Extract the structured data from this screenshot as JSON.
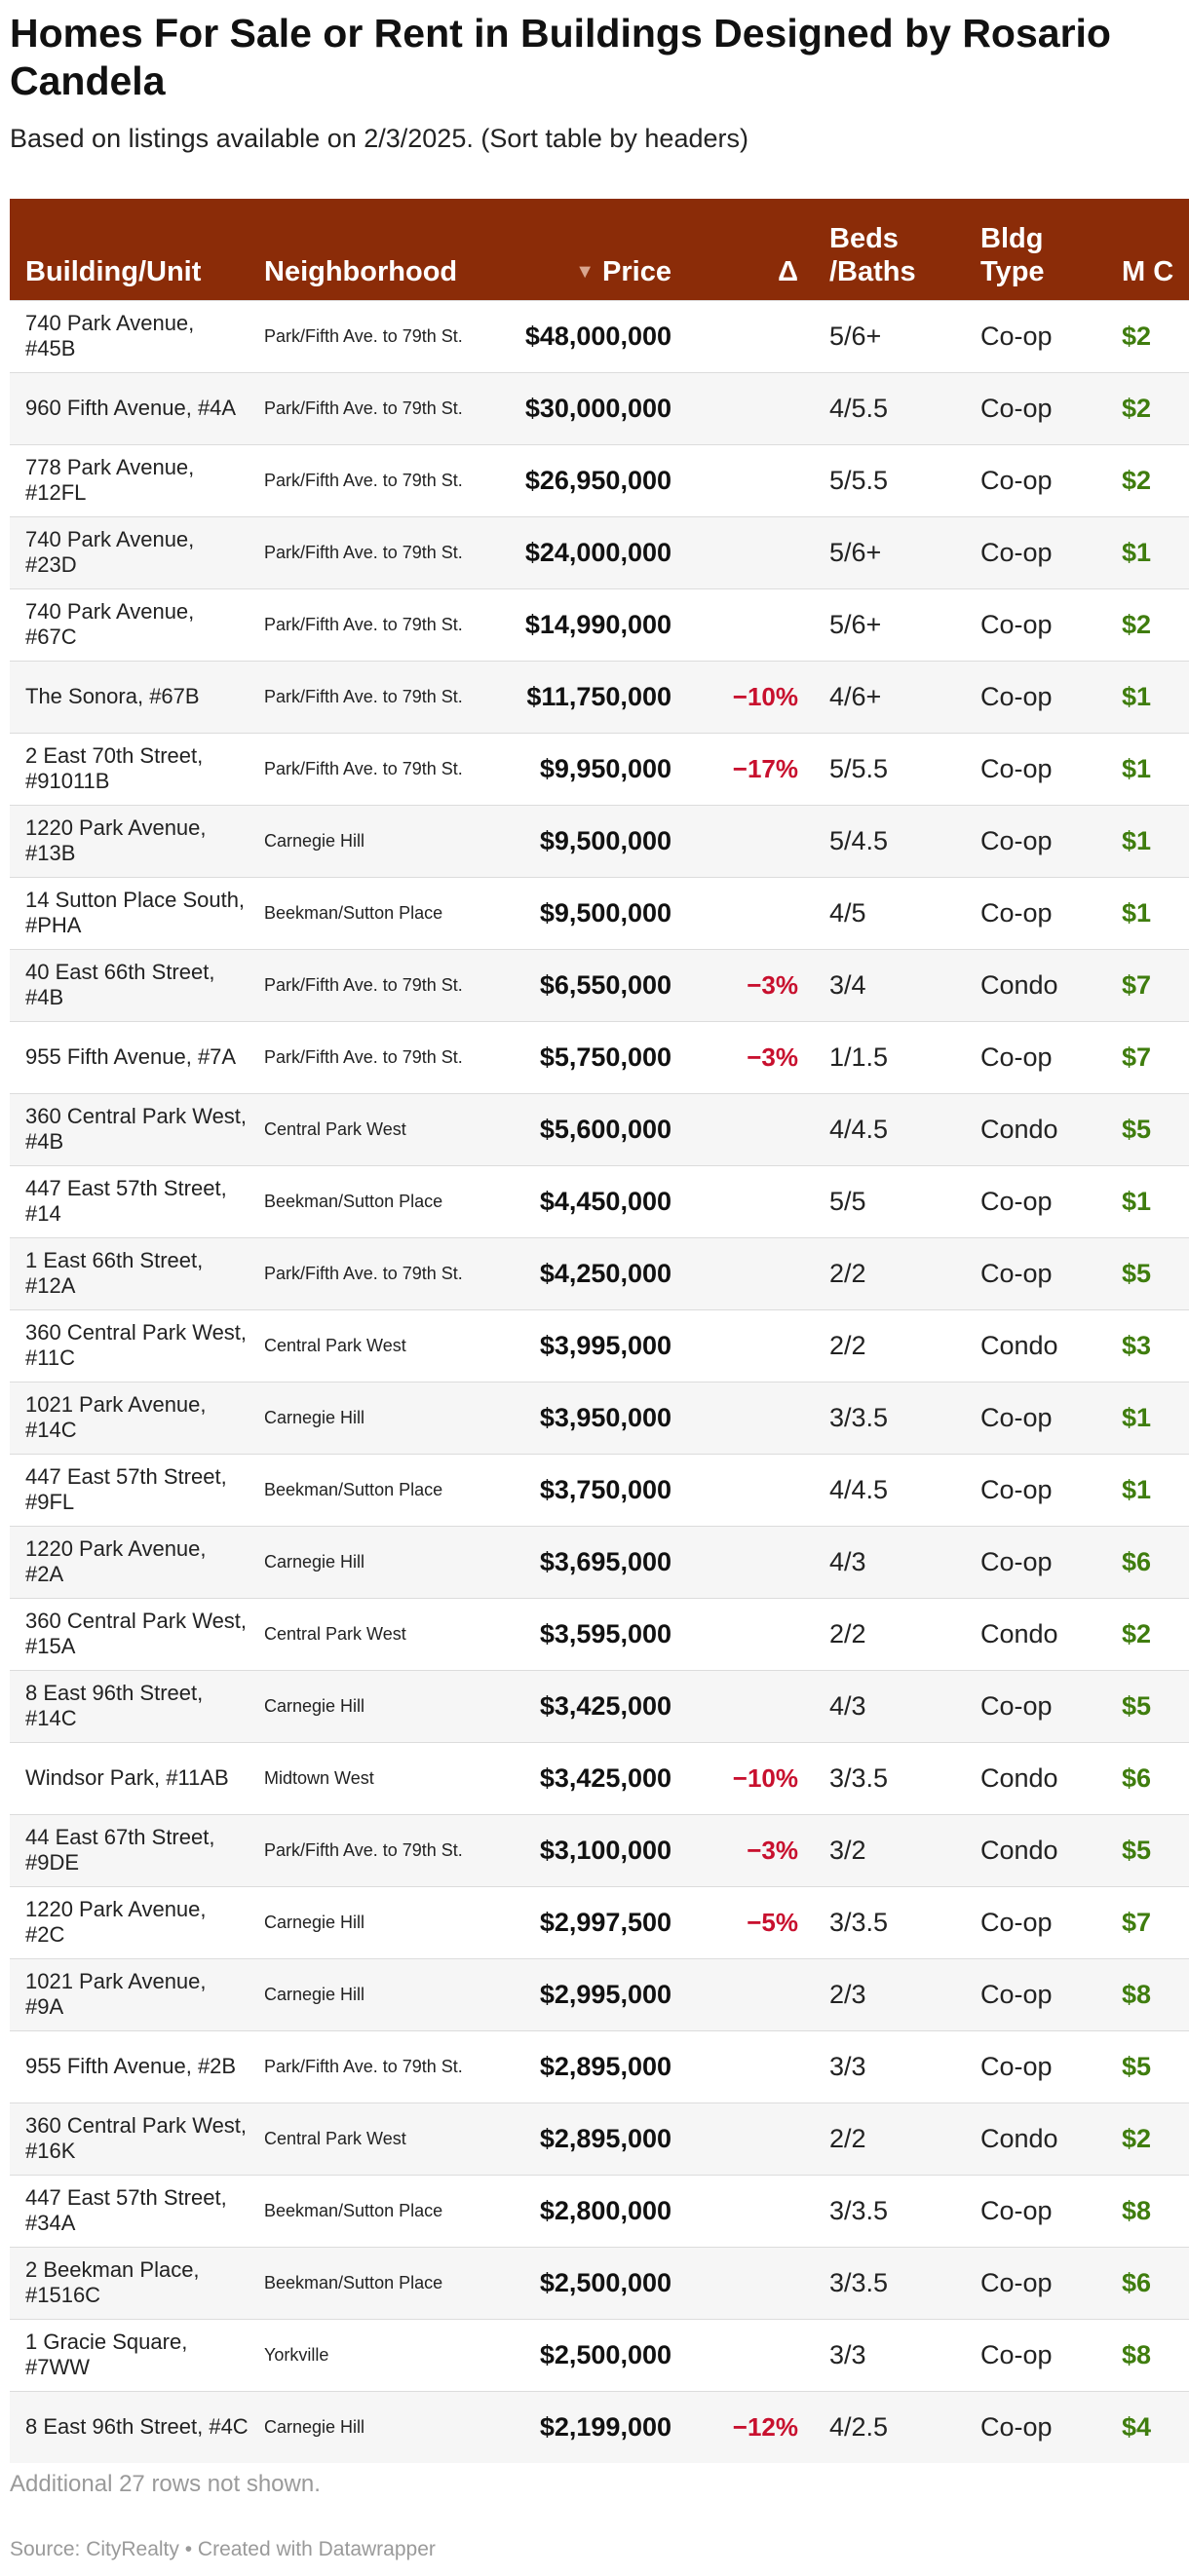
{
  "title": "Homes For Sale or Rent in Buildings Designed by Rosario Candela",
  "subtitle": "Based on listings available on 2/3/2025. (Sort table by headers)",
  "colors": {
    "header_bg": "#8b2c08",
    "delta": "#c8102e",
    "maintenance": "#3f7d0e"
  },
  "chart_data": {
    "type": "table",
    "sort_indicator": "▼",
    "columns": [
      "Building/Unit",
      "Neighborhood",
      "Price",
      "Δ",
      "Beds /Baths",
      "Bldg Type",
      "M C"
    ],
    "rows": [
      {
        "building": "740 Park Avenue, #45B",
        "neighborhood": "Park/Fifth Ave. to 79th St.",
        "price": "$48,000,000",
        "delta": "",
        "beds": "5/6+",
        "type": "Co-op",
        "maint": "$2"
      },
      {
        "building": "960 Fifth Avenue, #4A",
        "neighborhood": "Park/Fifth Ave. to 79th St.",
        "price": "$30,000,000",
        "delta": "",
        "beds": "4/5.5",
        "type": "Co-op",
        "maint": "$2"
      },
      {
        "building": "778 Park Avenue, #12FL",
        "neighborhood": "Park/Fifth Ave. to 79th St.",
        "price": "$26,950,000",
        "delta": "",
        "beds": "5/5.5",
        "type": "Co-op",
        "maint": "$2"
      },
      {
        "building": "740 Park Avenue, #23D",
        "neighborhood": "Park/Fifth Ave. to 79th St.",
        "price": "$24,000,000",
        "delta": "",
        "beds": "5/6+",
        "type": "Co-op",
        "maint": "$1"
      },
      {
        "building": "740 Park Avenue, #67C",
        "neighborhood": "Park/Fifth Ave. to 79th St.",
        "price": "$14,990,000",
        "delta": "",
        "beds": "5/6+",
        "type": "Co-op",
        "maint": "$2"
      },
      {
        "building": "The Sonora, #67B",
        "neighborhood": "Park/Fifth Ave. to 79th St.",
        "price": "$11,750,000",
        "delta": "−10%",
        "beds": "4/6+",
        "type": "Co-op",
        "maint": "$1"
      },
      {
        "building": "2 East 70th Street, #91011B",
        "neighborhood": "Park/Fifth Ave. to 79th St.",
        "price": "$9,950,000",
        "delta": "−17%",
        "beds": "5/5.5",
        "type": "Co-op",
        "maint": "$1"
      },
      {
        "building": "1220 Park Avenue, #13B",
        "neighborhood": "Carnegie Hill",
        "price": "$9,500,000",
        "delta": "",
        "beds": "5/4.5",
        "type": "Co-op",
        "maint": "$1"
      },
      {
        "building": "14 Sutton Place South, #PHA",
        "neighborhood": "Beekman/Sutton Place",
        "price": "$9,500,000",
        "delta": "",
        "beds": "4/5",
        "type": "Co-op",
        "maint": "$1"
      },
      {
        "building": "40 East 66th Street, #4B",
        "neighborhood": "Park/Fifth Ave. to 79th St.",
        "price": "$6,550,000",
        "delta": "−3%",
        "beds": "3/4",
        "type": "Condo",
        "maint": "$7"
      },
      {
        "building": "955 Fifth Avenue, #7A",
        "neighborhood": "Park/Fifth Ave. to 79th St.",
        "price": "$5,750,000",
        "delta": "−3%",
        "beds": "1/1.5",
        "type": "Co-op",
        "maint": "$7"
      },
      {
        "building": "360 Central Park West, #4B",
        "neighborhood": "Central Park West",
        "price": "$5,600,000",
        "delta": "",
        "beds": "4/4.5",
        "type": "Condo",
        "maint": "$5"
      },
      {
        "building": "447 East 57th Street, #14",
        "neighborhood": "Beekman/Sutton Place",
        "price": "$4,450,000",
        "delta": "",
        "beds": "5/5",
        "type": "Co-op",
        "maint": "$1"
      },
      {
        "building": "1 East 66th Street, #12A",
        "neighborhood": "Park/Fifth Ave. to 79th St.",
        "price": "$4,250,000",
        "delta": "",
        "beds": "2/2",
        "type": "Co-op",
        "maint": "$5"
      },
      {
        "building": "360 Central Park West, #11C",
        "neighborhood": "Central Park West",
        "price": "$3,995,000",
        "delta": "",
        "beds": "2/2",
        "type": "Condo",
        "maint": "$3"
      },
      {
        "building": "1021 Park Avenue, #14C",
        "neighborhood": "Carnegie Hill",
        "price": "$3,950,000",
        "delta": "",
        "beds": "3/3.5",
        "type": "Co-op",
        "maint": "$1"
      },
      {
        "building": "447 East 57th Street, #9FL",
        "neighborhood": "Beekman/Sutton Place",
        "price": "$3,750,000",
        "delta": "",
        "beds": "4/4.5",
        "type": "Co-op",
        "maint": "$1"
      },
      {
        "building": "1220 Park Avenue, #2A",
        "neighborhood": "Carnegie Hill",
        "price": "$3,695,000",
        "delta": "",
        "beds": "4/3",
        "type": "Co-op",
        "maint": "$6"
      },
      {
        "building": "360 Central Park West, #15A",
        "neighborhood": "Central Park West",
        "price": "$3,595,000",
        "delta": "",
        "beds": "2/2",
        "type": "Condo",
        "maint": "$2"
      },
      {
        "building": "8 East 96th Street, #14C",
        "neighborhood": "Carnegie Hill",
        "price": "$3,425,000",
        "delta": "",
        "beds": "4/3",
        "type": "Co-op",
        "maint": "$5"
      },
      {
        "building": "Windsor Park, #11AB",
        "neighborhood": "Midtown West",
        "price": "$3,425,000",
        "delta": "−10%",
        "beds": "3/3.5",
        "type": "Condo",
        "maint": "$6"
      },
      {
        "building": "44 East 67th Street, #9DE",
        "neighborhood": "Park/Fifth Ave. to 79th St.",
        "price": "$3,100,000",
        "delta": "−3%",
        "beds": "3/2",
        "type": "Condo",
        "maint": "$5"
      },
      {
        "building": "1220 Park Avenue, #2C",
        "neighborhood": "Carnegie Hill",
        "price": "$2,997,500",
        "delta": "−5%",
        "beds": "3/3.5",
        "type": "Co-op",
        "maint": "$7"
      },
      {
        "building": "1021 Park Avenue, #9A",
        "neighborhood": "Carnegie Hill",
        "price": "$2,995,000",
        "delta": "",
        "beds": "2/3",
        "type": "Co-op",
        "maint": "$8"
      },
      {
        "building": "955 Fifth Avenue, #2B",
        "neighborhood": "Park/Fifth Ave. to 79th St.",
        "price": "$2,895,000",
        "delta": "",
        "beds": "3/3",
        "type": "Co-op",
        "maint": "$5"
      },
      {
        "building": "360 Central Park West, #16K",
        "neighborhood": "Central Park West",
        "price": "$2,895,000",
        "delta": "",
        "beds": "2/2",
        "type": "Condo",
        "maint": "$2"
      },
      {
        "building": "447 East 57th Street, #34A",
        "neighborhood": "Beekman/Sutton Place",
        "price": "$2,800,000",
        "delta": "",
        "beds": "3/3.5",
        "type": "Co-op",
        "maint": "$8"
      },
      {
        "building": "2 Beekman Place, #1516C",
        "neighborhood": "Beekman/Sutton Place",
        "price": "$2,500,000",
        "delta": "",
        "beds": "3/3.5",
        "type": "Co-op",
        "maint": "$6"
      },
      {
        "building": "1 Gracie Square, #7WW",
        "neighborhood": "Yorkville",
        "price": "$2,500,000",
        "delta": "",
        "beds": "3/3",
        "type": "Co-op",
        "maint": "$8"
      },
      {
        "building": "8 East 96th Street, #4C",
        "neighborhood": "Carnegie Hill",
        "price": "$2,199,000",
        "delta": "−12%",
        "beds": "4/2.5",
        "type": "Co-op",
        "maint": "$4"
      }
    ]
  },
  "footer_note": "Additional 27 rows not shown.",
  "source": "Source: CityRealty • Created with Datawrapper"
}
